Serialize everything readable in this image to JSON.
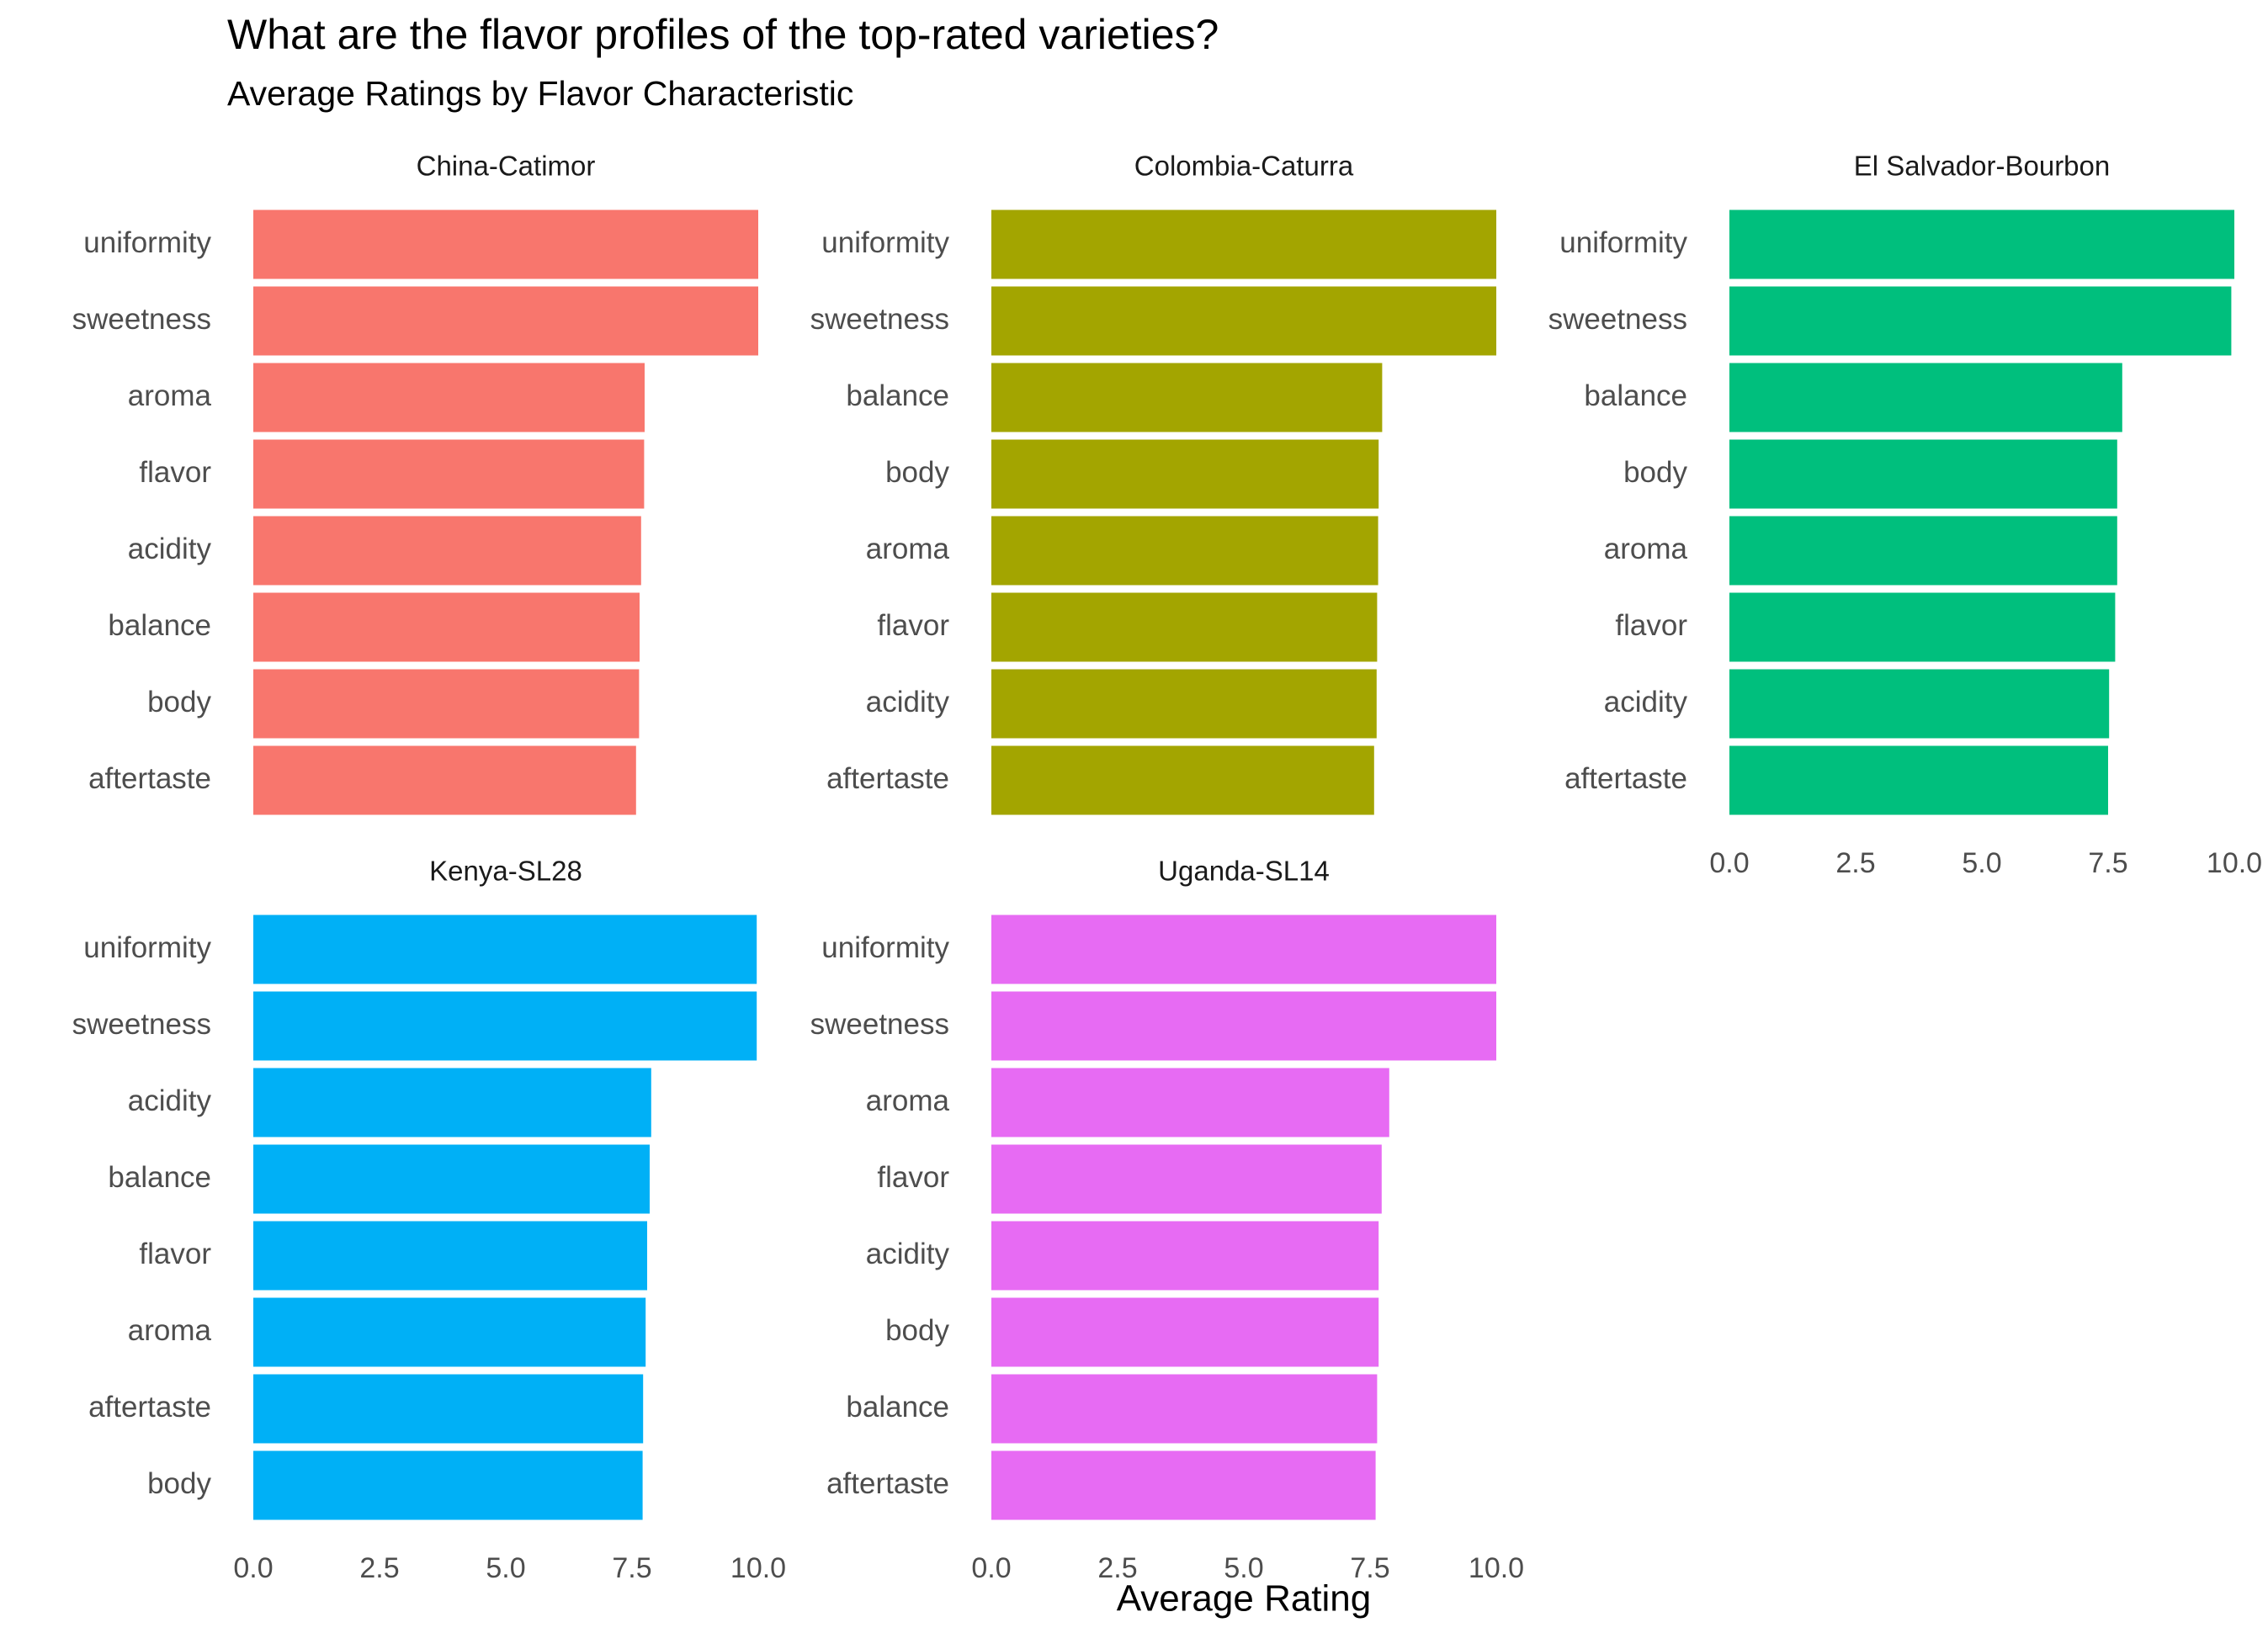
{
  "chart_data": {
    "type": "bar",
    "orientation": "horizontal",
    "faceted": true,
    "title": "What are the flavor profiles of the top-rated varieties?",
    "subtitle": "Average Ratings by Flavor Characteristic",
    "xlabel": "Average Rating",
    "ylabel": "",
    "xlim": [
      0,
      10
    ],
    "x_ticks": [
      "0.0",
      "2.5",
      "5.0",
      "7.5",
      "10.0"
    ],
    "grid": false,
    "legend": "none",
    "facets": [
      {
        "name": "China-Catimor",
        "color": "#F8766D",
        "categories": [
          "uniformity",
          "sweetness",
          "aroma",
          "flavor",
          "acidity",
          "balance",
          "body",
          "aftertaste"
        ],
        "values": [
          10.0,
          10.0,
          7.75,
          7.74,
          7.68,
          7.65,
          7.64,
          7.58
        ]
      },
      {
        "name": "Colombia-Caturra",
        "color": "#A3A500",
        "categories": [
          "uniformity",
          "sweetness",
          "balance",
          "body",
          "aroma",
          "flavor",
          "acidity",
          "aftertaste"
        ],
        "values": [
          10.0,
          10.0,
          7.74,
          7.67,
          7.66,
          7.64,
          7.63,
          7.58
        ]
      },
      {
        "name": "El Salvador-Bourbon",
        "color": "#00BF7D",
        "categories": [
          "uniformity",
          "sweetness",
          "balance",
          "body",
          "aroma",
          "flavor",
          "acidity",
          "aftertaste"
        ],
        "values": [
          10.0,
          9.94,
          7.78,
          7.68,
          7.68,
          7.64,
          7.52,
          7.5
        ]
      },
      {
        "name": "Kenya-SL28",
        "color": "#00B0F6",
        "categories": [
          "uniformity",
          "sweetness",
          "acidity",
          "balance",
          "flavor",
          "aroma",
          "aftertaste",
          "body"
        ],
        "values": [
          9.97,
          9.97,
          7.88,
          7.85,
          7.8,
          7.77,
          7.72,
          7.71
        ]
      },
      {
        "name": "Uganda-SL14",
        "color": "#E76BF3",
        "categories": [
          "uniformity",
          "sweetness",
          "aroma",
          "flavor",
          "acidity",
          "body",
          "balance",
          "aftertaste"
        ],
        "values": [
          10.0,
          10.0,
          7.88,
          7.73,
          7.67,
          7.67,
          7.64,
          7.61
        ]
      }
    ]
  }
}
